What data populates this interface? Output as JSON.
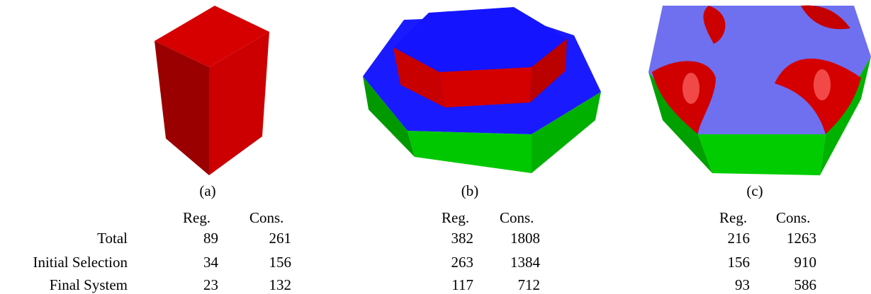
{
  "figures": [
    {
      "caption": "(a)",
      "headers": [
        "Reg.",
        "Cons."
      ],
      "values": [
        [
          "89",
          "261"
        ],
        [
          "34",
          "156"
        ],
        [
          "23",
          "132"
        ]
      ]
    },
    {
      "caption": "(b)",
      "headers": [
        "Reg.",
        "Cons."
      ],
      "values": [
        [
          "382",
          "1808"
        ],
        [
          "263",
          "1384"
        ],
        [
          "117",
          "712"
        ]
      ]
    },
    {
      "caption": "(c)",
      "headers": [
        "Reg.",
        "Cons."
      ],
      "values": [
        [
          "216",
          "1263"
        ],
        [
          "156",
          "910"
        ],
        [
          "93",
          "586"
        ]
      ]
    }
  ],
  "row_labels": [
    "Total",
    "Initial Selection",
    "Final System"
  ],
  "colors": {
    "red": "#d40000",
    "blue": "#1a1aff",
    "green": "#00cc00",
    "lavender": "#6f70f0"
  }
}
